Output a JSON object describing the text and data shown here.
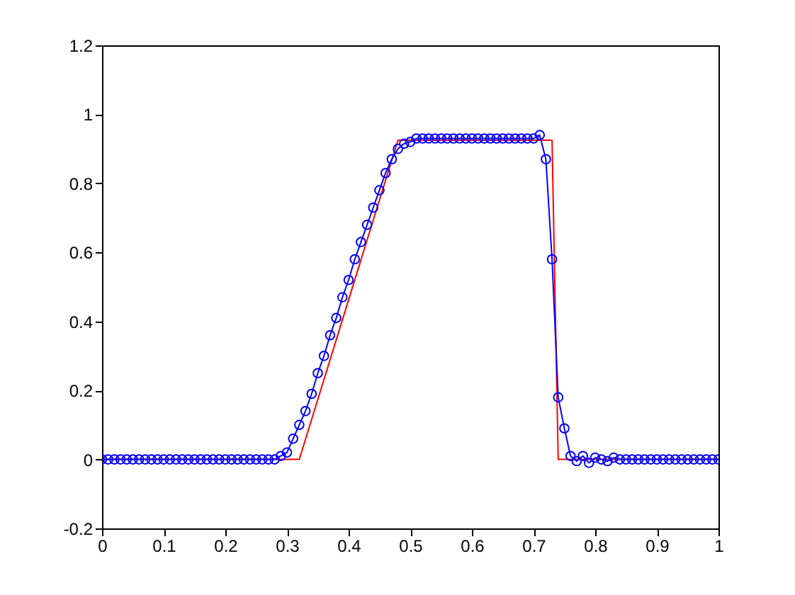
{
  "chart_data": {
    "type": "line",
    "xlim": [
      0,
      1
    ],
    "ylim": [
      -0.2,
      1.2
    ],
    "xticks": [
      0,
      0.1,
      0.2,
      0.3,
      0.4,
      0.5,
      0.6,
      0.7,
      0.8,
      0.9,
      1
    ],
    "yticks": [
      -0.2,
      0,
      0.2,
      0.4,
      0.6,
      0.8,
      1,
      1.2
    ],
    "grid": false,
    "series": [
      {
        "color": "#ff0000",
        "marker": "none",
        "line_style": "solid",
        "x": [
          0,
          0.32,
          0.48,
          0.73,
          0.74,
          1
        ],
        "values": [
          0,
          0,
          0.925,
          0.925,
          0,
          0
        ]
      },
      {
        "color": "#0000ff",
        "marker": "circle",
        "line_style": "solid",
        "x": [
          0,
          0.01,
          0.02,
          0.03,
          0.04,
          0.05,
          0.06,
          0.07,
          0.08,
          0.09,
          0.1,
          0.11,
          0.12,
          0.13,
          0.14,
          0.15,
          0.16,
          0.17,
          0.18,
          0.19,
          0.2,
          0.21,
          0.22,
          0.23,
          0.24,
          0.25,
          0.26,
          0.27,
          0.28,
          0.29,
          0.3,
          0.31,
          0.32,
          0.33,
          0.34,
          0.35,
          0.36,
          0.37,
          0.38,
          0.39,
          0.4,
          0.41,
          0.42,
          0.43,
          0.44,
          0.45,
          0.46,
          0.47,
          0.48,
          0.49,
          0.5,
          0.51,
          0.52,
          0.53,
          0.54,
          0.55,
          0.56,
          0.57,
          0.58,
          0.59,
          0.6,
          0.61,
          0.62,
          0.63,
          0.64,
          0.65,
          0.66,
          0.67,
          0.68,
          0.69,
          0.7,
          0.71,
          0.72,
          0.73,
          0.74,
          0.75,
          0.76,
          0.77,
          0.78,
          0.79,
          0.8,
          0.81,
          0.82,
          0.83,
          0.84,
          0.85,
          0.86,
          0.87,
          0.88,
          0.89,
          0.9,
          0.91,
          0.92,
          0.93,
          0.94,
          0.95,
          0.96,
          0.97,
          0.98,
          0.99,
          1
        ],
        "values": [
          0,
          0,
          0,
          0,
          0,
          0,
          0,
          0,
          0,
          0,
          0,
          0,
          0,
          0,
          0,
          0,
          0,
          0,
          0,
          0,
          0,
          0,
          0,
          0,
          0,
          0,
          0,
          0,
          0,
          0.01,
          0.02,
          0.06,
          0.1,
          0.14,
          0.19,
          0.25,
          0.3,
          0.36,
          0.41,
          0.47,
          0.52,
          0.58,
          0.63,
          0.68,
          0.73,
          0.78,
          0.83,
          0.87,
          0.9,
          0.915,
          0.92,
          0.93,
          0.93,
          0.93,
          0.93,
          0.93,
          0.93,
          0.93,
          0.93,
          0.93,
          0.93,
          0.93,
          0.93,
          0.93,
          0.93,
          0.93,
          0.93,
          0.93,
          0.93,
          0.93,
          0.93,
          0.94,
          0.87,
          0.58,
          0.18,
          0.09,
          0.01,
          -0.005,
          0.01,
          -0.01,
          0.005,
          0,
          -0.005,
          0.005,
          0,
          0,
          0,
          0,
          0,
          0,
          0,
          0,
          0,
          0,
          0,
          0,
          0,
          0,
          0,
          0,
          0
        ]
      }
    ]
  }
}
